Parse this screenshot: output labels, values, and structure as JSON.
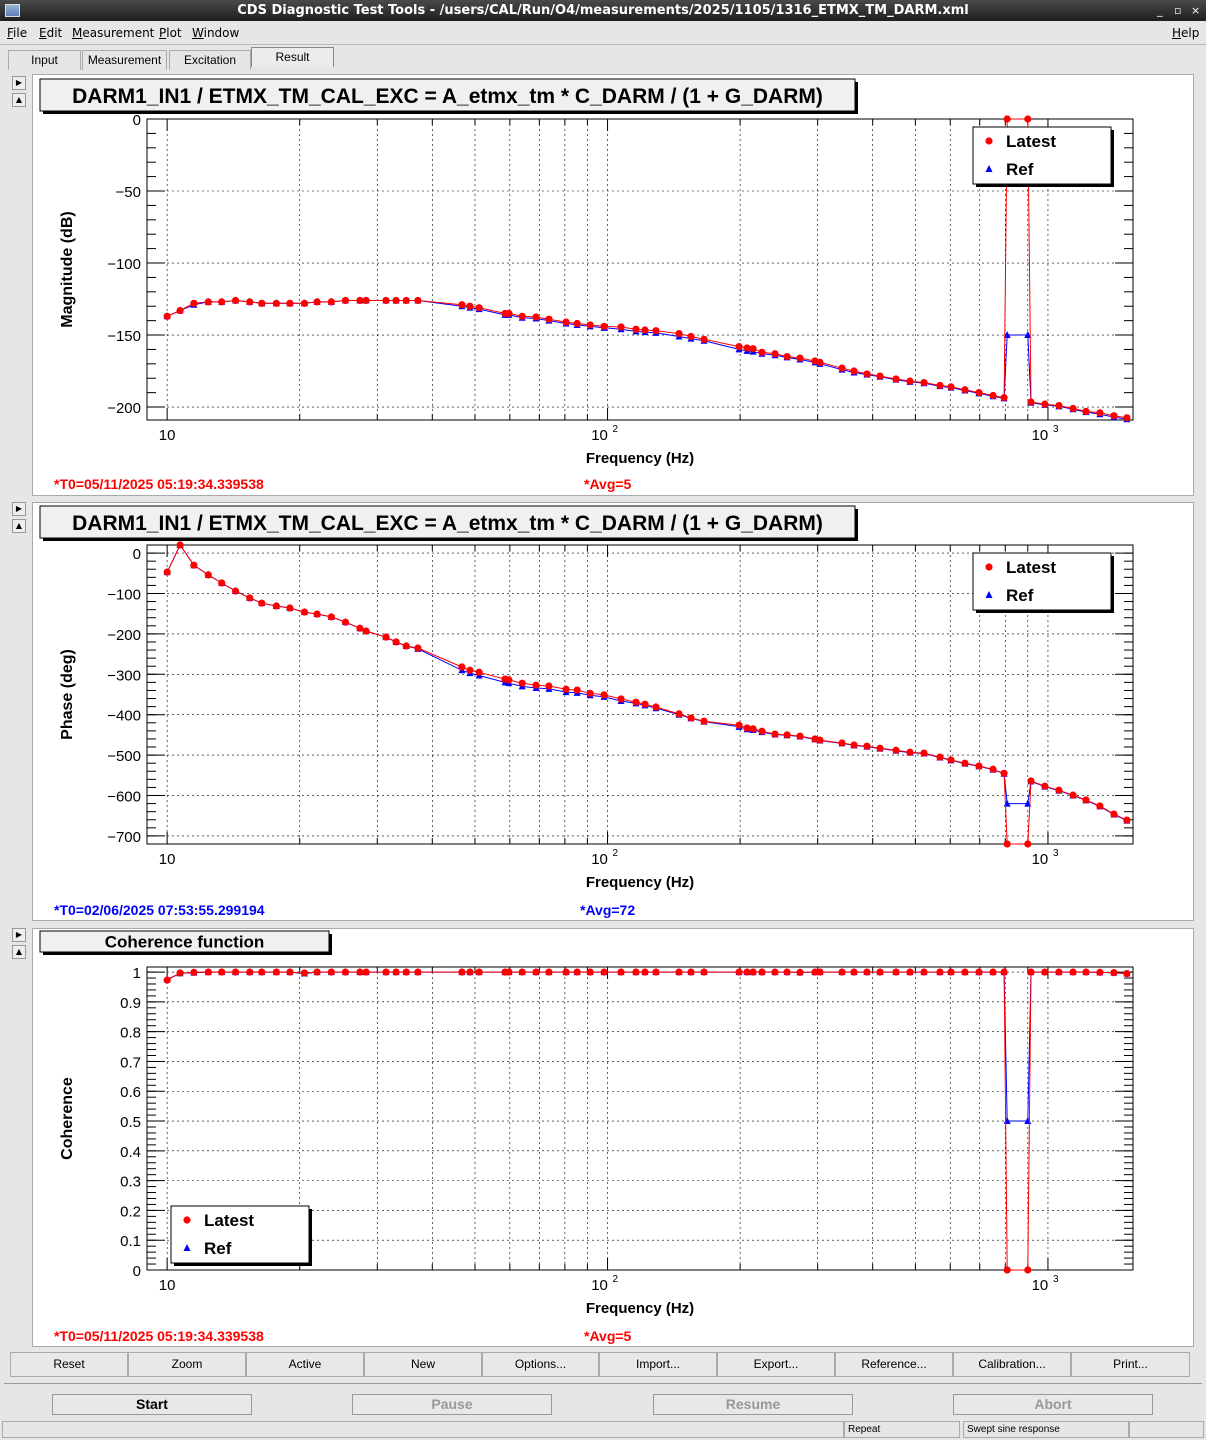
{
  "window": {
    "title": "CDS Diagnostic Test Tools - /users/CAL/Run/O4/measurements/2025/1105/1316_ETMX_TM_DARM.xml",
    "controls": [
      "_",
      "▫",
      "×"
    ]
  },
  "menu": {
    "items": [
      "File",
      "Edit",
      "Measurement",
      "Plot",
      "Window"
    ],
    "help": "Help"
  },
  "tabs": [
    "Input",
    "Measurement",
    "Excitation",
    "Result"
  ],
  "selected_tab": "Result",
  "toolbar": [
    "Reset",
    "Zoom",
    "Active",
    "New",
    "Options...",
    "Import...",
    "Export...",
    "Reference...",
    "Calibration...",
    "Print..."
  ],
  "controls": {
    "start": "Start",
    "pause": "Pause",
    "resume": "Resume",
    "abort": "Abort"
  },
  "status": {
    "repeat": "Repeat",
    "mode": "Swept sine response"
  },
  "colors": {
    "latest": "#ff0000",
    "ref": "#0000ff",
    "t0_red": "#ff0000",
    "t0_blue": "#0000ff"
  },
  "chart_data": [
    {
      "type": "scatter",
      "title": "DARM1_IN1 / ETMX_TM_CAL_EXC = A_etmx_tm * C_DARM / (1 + G_DARM)",
      "xlabel": "Frequency (Hz)",
      "ylabel": "Magnitude (dB)",
      "xscale": "log",
      "xlim": [
        9.0,
        1560
      ],
      "ylim": [
        -209,
        0
      ],
      "yticks": [
        0,
        -50,
        -100,
        -150,
        -200
      ],
      "xticks": [
        "10",
        "10^2",
        "10^3"
      ],
      "legend": [
        "Latest",
        "Ref"
      ],
      "legend_position": "top-right",
      "t0": "*T0=05/11/2025 05:19:34.339538",
      "avg": "*Avg=5",
      "t0_color": "red",
      "x": [
        10,
        10.7,
        11.5,
        12.4,
        13.3,
        14.3,
        15.4,
        16.4,
        17.7,
        19.0,
        20.5,
        21.9,
        23.6,
        25.4,
        27.4,
        28.3,
        31.4,
        33.1,
        34.9,
        37.1,
        46.7,
        48.7,
        51.1,
        58.5,
        59.7,
        64.0,
        68.8,
        73.6,
        80.5,
        85.3,
        91.3,
        98.2,
        107.3,
        116,
        121.6,
        128.8,
        145.3,
        154.7,
        165.6,
        198.9,
        207.4,
        214,
        224.2,
        240,
        255.6,
        273.5,
        295.8,
        303.6,
        340.7,
        362.8,
        388.2,
        415.6,
        451.8,
        486.1,
        523.1,
        568.6,
        602.3,
        647.9,
        697.2,
        750.4,
        795,
        808,
        900,
        915,
        984,
        1059,
        1140,
        1220,
        1312,
        1412,
        1511
      ],
      "latest": [
        -137,
        -133,
        -128,
        -127,
        -127,
        -126,
        -127,
        -128,
        -128,
        -128,
        -128,
        -127,
        -127,
        -126,
        -126,
        -126,
        -126,
        -126,
        -126,
        -126,
        -129,
        -130,
        -131,
        -135,
        -135,
        -137,
        -137.5,
        -139,
        -141,
        -142,
        -143,
        -144,
        -144.4,
        -146,
        -146.5,
        -147,
        -149,
        -151,
        -153,
        -158,
        -159,
        -159.5,
        -162,
        -163,
        -165,
        -166,
        -168,
        -169,
        -173,
        -175,
        -177,
        -178.5,
        -180.5,
        -182,
        -183,
        -185,
        -186,
        -188,
        -190,
        -192,
        -193.5,
        0,
        0,
        -196.5,
        -198,
        -199,
        -201,
        -203,
        -204,
        -206,
        -207.5
      ],
      "ref": [
        -137,
        -133,
        -129,
        -127,
        -127,
        -126,
        -127,
        -128,
        -128,
        -128,
        -128,
        -127,
        -127,
        -126,
        -126,
        -126,
        -126,
        -126,
        -126,
        -126,
        -130,
        -131,
        -132,
        -136,
        -136,
        -138,
        -138.5,
        -140,
        -142,
        -143,
        -144,
        -145,
        -146,
        -147.5,
        -148,
        -148.5,
        -151,
        -152.5,
        -154,
        -160,
        -161,
        -161.5,
        -163,
        -164,
        -165.5,
        -167,
        -169,
        -170,
        -174,
        -176,
        -177.5,
        -179,
        -181,
        -182.5,
        -183.5,
        -185.5,
        -186.5,
        -188.5,
        -190.5,
        -192.5,
        -194,
        -150,
        -150,
        -197,
        -198.5,
        -199.5,
        -201.5,
        -203.5,
        -205,
        -207,
        -208.5
      ]
    },
    {
      "type": "scatter",
      "title": "DARM1_IN1 / ETMX_TM_CAL_EXC = A_etmx_tm * C_DARM / (1 + G_DARM)",
      "xlabel": "Frequency (Hz)",
      "ylabel": "Phase (deg)",
      "xscale": "log",
      "xlim": [
        9.0,
        1560
      ],
      "ylim": [
        -720,
        20
      ],
      "yticks": [
        0,
        -100,
        -200,
        -300,
        -400,
        -500,
        -600,
        -700
      ],
      "xticks": [
        "10",
        "10^2",
        "10^3"
      ],
      "legend": [
        "Latest",
        "Ref"
      ],
      "legend_position": "top-right",
      "t0": "*T0=02/06/2025 07:53:55.299194",
      "avg": "*Avg=72",
      "t0_color": "blue",
      "x": [
        10,
        10.7,
        11.5,
        12.4,
        13.3,
        14.3,
        15.4,
        16.4,
        17.7,
        19.0,
        20.5,
        21.9,
        23.6,
        25.4,
        27.4,
        28.3,
        31.4,
        33.1,
        34.9,
        37.1,
        46.7,
        48.7,
        51.1,
        58.5,
        59.7,
        64.0,
        68.8,
        73.6,
        80.5,
        85.3,
        91.3,
        98.2,
        107.3,
        116,
        121.6,
        128.8,
        145.3,
        154.7,
        165.6,
        198.9,
        207.4,
        214,
        224.2,
        240,
        255.6,
        273.5,
        295.8,
        303.6,
        340.7,
        362.8,
        388.2,
        415.6,
        451.8,
        486.1,
        523.1,
        568.6,
        602.3,
        647.9,
        697.2,
        750.4,
        795,
        808,
        900,
        915,
        984,
        1059,
        1140,
        1220,
        1312,
        1412,
        1511
      ],
      "latest": [
        -47,
        20,
        -30,
        -54,
        -74,
        -94,
        -111,
        -124,
        -131,
        -136,
        -146,
        -151,
        -158,
        -171,
        -186,
        -193,
        -208,
        -220,
        -230,
        -235,
        -282,
        -290,
        -295,
        -312,
        -314,
        -322,
        -327,
        -329,
        -337,
        -339,
        -347,
        -351,
        -361,
        -369,
        -374,
        -381,
        -398,
        -408,
        -416,
        -426,
        -433,
        -435,
        -441,
        -448,
        -450,
        -453,
        -460,
        -463,
        -470,
        -475,
        -478,
        -483,
        -488,
        -493,
        -495,
        -505,
        -512,
        -520,
        -527,
        -535,
        -545,
        -720,
        -720,
        -564,
        -577,
        -587,
        -599,
        -611,
        -626,
        -646,
        -661
      ],
      "ref": [
        -47,
        20,
        -30,
        -54,
        -74,
        -94,
        -111,
        -124,
        -131,
        -136,
        -146,
        -151,
        -158,
        -171,
        -186,
        -193,
        -208,
        -220,
        -230,
        -237,
        -290,
        -297,
        -303,
        -320,
        -322,
        -330,
        -334,
        -336,
        -344,
        -346,
        -352,
        -356,
        -366,
        -372,
        -377,
        -384,
        -400,
        -409,
        -417,
        -430,
        -436,
        -438,
        -443,
        -449,
        -451,
        -454,
        -461,
        -464,
        -471,
        -476,
        -479,
        -484,
        -489,
        -494,
        -496,
        -506,
        -513,
        -521,
        -528,
        -536,
        -546,
        -620,
        -620,
        -565,
        -578,
        -588,
        -600,
        -612,
        -627,
        -647,
        -662
      ]
    },
    {
      "type": "scatter",
      "title": "Coherence function",
      "xlabel": "Frequency (Hz)",
      "ylabel": "Coherence",
      "xscale": "log",
      "xlim": [
        9.0,
        1560
      ],
      "ylim": [
        0,
        1.017
      ],
      "yticks": [
        0,
        0.1,
        0.2,
        0.3,
        0.4,
        0.5,
        0.6,
        0.7,
        0.8,
        0.9,
        1
      ],
      "xticks": [
        "10",
        "10^2",
        "10^3"
      ],
      "legend": [
        "Latest",
        "Ref"
      ],
      "legend_position": "bottom-left",
      "t0": "*T0=05/11/2025 05:19:34.339538",
      "avg": "*Avg=5",
      "t0_color": "red",
      "x": [
        10,
        10.7,
        11.5,
        12.4,
        13.3,
        14.3,
        15.4,
        16.4,
        17.7,
        19.0,
        20.5,
        21.9,
        23.6,
        25.4,
        27.4,
        28.3,
        31.4,
        33.1,
        34.9,
        37.1,
        46.7,
        48.7,
        51.1,
        58.5,
        59.7,
        64.0,
        68.8,
        73.6,
        80.5,
        85.3,
        91.3,
        98.2,
        107.3,
        116,
        121.6,
        128.8,
        145.3,
        154.7,
        165.6,
        198.9,
        207.4,
        214,
        224.2,
        240,
        255.6,
        273.5,
        295.8,
        303.6,
        340.7,
        362.8,
        388.2,
        415.6,
        451.8,
        486.1,
        523.1,
        568.6,
        602.3,
        647.9,
        697.2,
        750.4,
        795,
        808,
        900,
        915,
        984,
        1059,
        1140,
        1220,
        1312,
        1412,
        1511
      ],
      "latest": [
        0.973,
        0.997,
        0.999,
        1,
        1,
        1,
        1,
        1,
        1,
        1,
        0.997,
        1,
        1,
        1,
        1,
        1,
        1,
        1,
        1,
        1,
        1,
        1,
        1,
        1,
        1,
        1,
        1,
        1,
        1,
        1,
        1,
        1,
        1,
        1,
        1,
        1,
        1,
        1,
        1,
        1,
        1,
        1,
        1,
        1,
        1,
        0.999,
        1,
        1,
        1,
        1,
        1,
        1,
        1,
        1,
        1,
        1,
        1,
        1,
        1,
        1,
        1,
        0,
        0,
        1,
        1,
        1,
        1,
        1,
        0.999,
        0.998,
        0.995
      ],
      "ref": [
        0.975,
        0.996,
        0.998,
        1,
        1,
        1,
        1,
        1,
        1,
        1,
        0.995,
        1,
        1,
        1,
        1,
        1,
        1,
        1,
        1,
        1,
        1,
        1,
        1,
        1,
        1,
        1,
        1,
        1,
        1,
        1,
        1,
        1,
        1,
        1,
        1,
        1,
        1,
        1,
        1,
        1,
        1,
        1,
        1,
        1,
        1,
        0.999,
        1,
        1,
        1,
        1,
        1,
        1,
        1,
        1,
        1,
        1,
        1,
        1,
        1,
        1,
        1,
        0.5,
        0.5,
        1,
        1,
        1,
        1,
        1,
        0.999,
        0.998,
        0.995
      ]
    }
  ]
}
